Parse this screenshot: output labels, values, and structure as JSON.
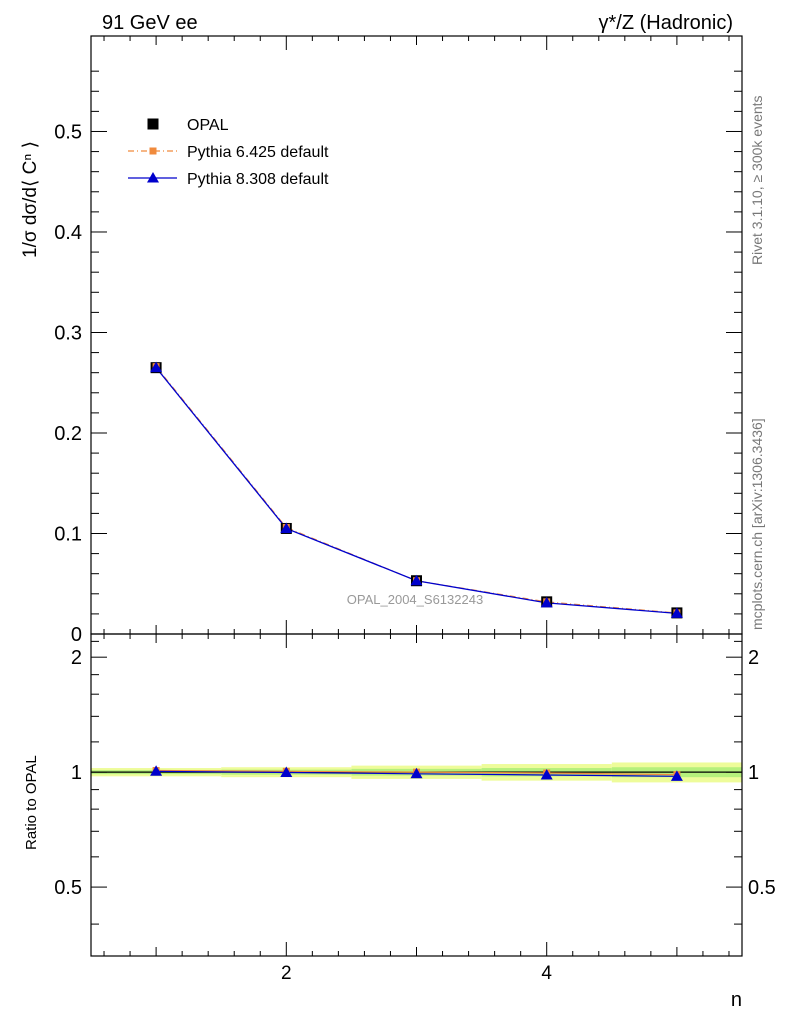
{
  "header": {
    "left": "91 GeV ee",
    "right": "γ*/Z (Hadronic)"
  },
  "side_labels": {
    "rivet": "Rivet 3.1.10, ≥ 300k events",
    "mcplots": "mcplots.cern.ch [arXiv:1306.3436]"
  },
  "analysis_tag": "OPAL_2004_S6132243",
  "chart_data": [
    {
      "type": "line",
      "panel": "main",
      "ylabel": "1/σ dσ/d⟨ Cⁿ ⟩",
      "xlim": [
        0.5,
        5.5
      ],
      "ylim": [
        0,
        0.595
      ],
      "y_ticks": [
        0,
        0.1,
        0.2,
        0.3,
        0.4,
        0.5
      ],
      "y_tick_labels": [
        "0",
        "0.1",
        "0.2",
        "0.3",
        "0.4",
        "0.5"
      ],
      "legend_position": "top-left",
      "x": [
        1,
        2,
        3,
        4,
        5
      ],
      "series": [
        {
          "name": "OPAL",
          "style": "data",
          "color": "#000000",
          "marker": "square",
          "values": [
            0.265,
            0.105,
            0.053,
            0.032,
            0.021
          ]
        },
        {
          "name": "Pythia 6.425 default",
          "style": "dashdot",
          "color": "#f08a3c",
          "marker": "square-small",
          "values": [
            0.266,
            0.106,
            0.053,
            0.032,
            0.021
          ]
        },
        {
          "name": "Pythia 8.308 default",
          "style": "solid",
          "color": "#0000cc",
          "marker": "triangle",
          "values": [
            0.265,
            0.105,
            0.053,
            0.031,
            0.0205
          ]
        }
      ]
    },
    {
      "type": "line",
      "panel": "ratio",
      "ylabel": "Ratio to OPAL",
      "xlabel": "n",
      "xlim": [
        0.5,
        5.5
      ],
      "ylim": [
        0.33,
        2.3
      ],
      "y_ticks": [
        0.5,
        1,
        2
      ],
      "y_tick_labels": [
        "0.5",
        "1",
        "2"
      ],
      "x_ticks": [
        2,
        4
      ],
      "x_tick_labels": [
        "2",
        "4"
      ],
      "band": {
        "bins": [
          [
            0.5,
            1.5
          ],
          [
            1.5,
            2.5
          ],
          [
            2.5,
            3.5
          ],
          [
            3.5,
            4.5
          ],
          [
            4.5,
            5.5
          ]
        ],
        "outer": [
          0.025,
          0.03,
          0.04,
          0.05,
          0.06
        ],
        "inner": [
          0.012,
          0.015,
          0.02,
          0.025,
          0.03
        ],
        "outer_color": "#eefc9a",
        "inner_color": "#b5f07c"
      },
      "x": [
        1,
        2,
        3,
        4,
        5
      ],
      "series": [
        {
          "name": "Pythia 6.425 default",
          "color": "#f08a3c",
          "marker": "square-small",
          "values": [
            1.01,
            1.005,
            1.0,
            0.995,
            0.985
          ]
        },
        {
          "name": "Pythia 8.308 default",
          "color": "#0000cc",
          "marker": "triangle",
          "values": [
            1.005,
            0.998,
            0.99,
            0.983,
            0.975
          ]
        }
      ]
    }
  ]
}
